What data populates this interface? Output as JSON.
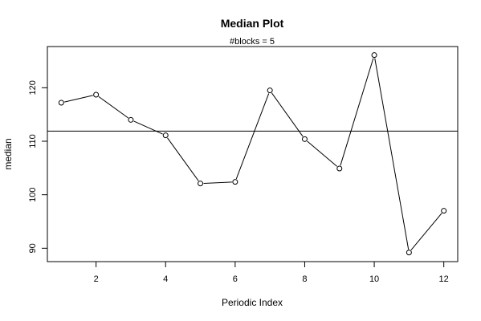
{
  "chart_data": {
    "type": "line",
    "title": "Median Plot",
    "subtitle": "#blocks =  5",
    "xlabel": "Periodic Index",
    "ylabel": "median",
    "x": [
      1,
      2,
      3,
      4,
      5,
      6,
      7,
      8,
      9,
      10,
      11,
      12
    ],
    "series": [
      {
        "values": [
          117.2,
          118.7,
          114.0,
          111.1,
          102.1,
          102.4,
          119.5,
          110.4,
          104.9,
          126.1,
          89.2,
          97.0
        ],
        "color": "#000000",
        "marker": "open-circle"
      }
    ],
    "reference_line": {
      "y": 111.9,
      "color": "#000000"
    },
    "xlim": [
      0.6,
      12.4
    ],
    "ylim": [
      87.5,
      127.7
    ],
    "xticks": [
      2,
      4,
      6,
      8,
      10,
      12
    ],
    "yticks": [
      90,
      100,
      110,
      120
    ],
    "grid": false,
    "legend": "none"
  }
}
